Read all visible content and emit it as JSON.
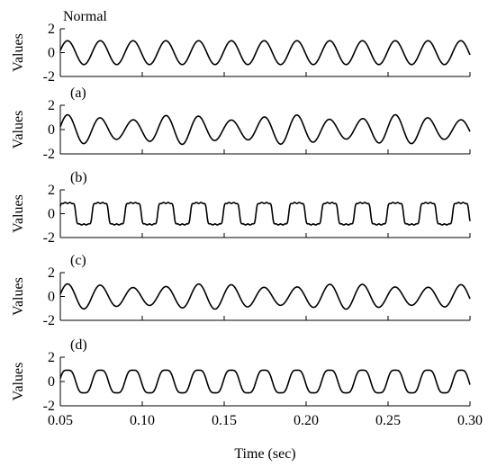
{
  "chart_data": [
    {
      "type": "line",
      "panel_label": "Normal",
      "ylabel": "Values",
      "xlim": [
        0.05,
        0.3
      ],
      "ylim": [
        -2,
        2
      ],
      "yticks": [
        "2",
        "0",
        "-2"
      ],
      "signal": {
        "frequency_hz": 50,
        "amplitude": 1.0,
        "shape": "sine"
      }
    },
    {
      "type": "line",
      "panel_label": "(a)",
      "ylabel": "Values",
      "xlim": [
        0.05,
        0.3
      ],
      "ylim": [
        -2,
        2
      ],
      "yticks": [
        "2",
        "0",
        "-2"
      ],
      "signal": {
        "frequency_hz": 50,
        "amplitude": 1.0,
        "shape": "sine-modulated",
        "modulation_depth": 0.22,
        "modulation_hz": 15
      }
    },
    {
      "type": "line",
      "panel_label": "(b)",
      "ylabel": "Values",
      "xlim": [
        0.05,
        0.3
      ],
      "ylim": [
        -2,
        2
      ],
      "yticks": [
        "2",
        "0",
        "-2"
      ],
      "signal": {
        "frequency_hz": 50,
        "amplitude": 0.9,
        "shape": "clipped-square"
      }
    },
    {
      "type": "line",
      "panel_label": "(c)",
      "ylabel": "Values",
      "xlim": [
        0.05,
        0.3
      ],
      "ylim": [
        -2,
        2
      ],
      "yticks": [
        "2",
        "0",
        "-2"
      ],
      "signal": {
        "frequency_hz": 50,
        "amplitude": 0.9,
        "shape": "sine-modulated",
        "modulation_depth": 0.18,
        "modulation_hz": 12
      }
    },
    {
      "type": "line",
      "panel_label": "(d)",
      "ylabel": "Values",
      "xlim": [
        0.05,
        0.3
      ],
      "ylim": [
        -2,
        2
      ],
      "yticks": [
        "2",
        "0",
        "-2"
      ],
      "xticks": [
        "0.05",
        "0.10",
        "0.15",
        "0.20",
        "0.25",
        "0.30"
      ],
      "xlabel": "Time (sec)",
      "signal": {
        "frequency_hz": 50,
        "amplitude": 1.05,
        "shape": "sine-harmonic",
        "harmonic_amp": 0.12
      }
    }
  ]
}
